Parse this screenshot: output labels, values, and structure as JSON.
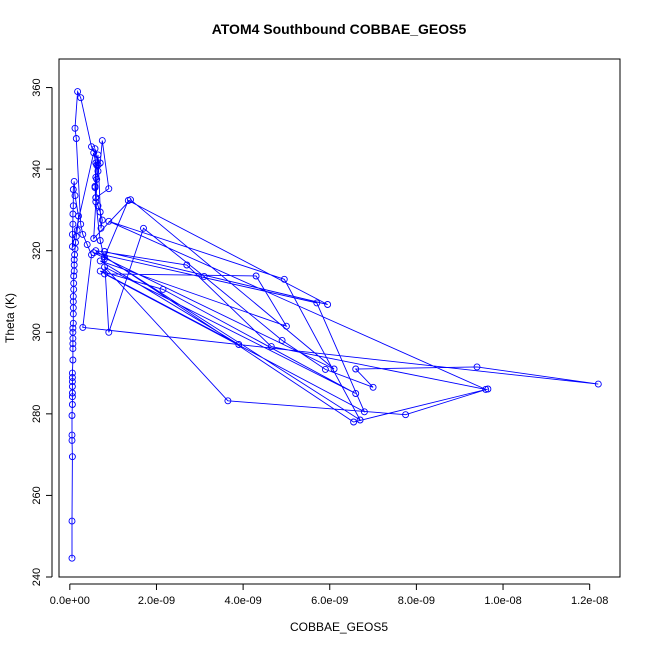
{
  "chart_data": {
    "type": "line",
    "title": "ATOM4 Southbound COBBAE_GEOS5",
    "xlabel": "COBBAE_GEOS5",
    "ylabel": "Theta (K)",
    "xlim": [
      -2.5e-10,
      1.27e-08
    ],
    "ylim": [
      240,
      367
    ],
    "xticks": [
      0,
      2e-09,
      4e-09,
      6e-09,
      8e-09,
      1e-08,
      1.2e-08
    ],
    "xtick_labels": [
      "0.0e+00",
      "2.0e-09",
      "4.0e-09",
      "6.0e-09",
      "8.0e-09",
      "1.0e-08",
      "1.2e-08"
    ],
    "yticks": [
      240,
      260,
      280,
      300,
      320,
      340,
      360
    ],
    "ytick_labels": [
      "240",
      "260",
      "280",
      "300",
      "320",
      "340",
      "360"
    ],
    "grid": false,
    "line_color": "#0000ff",
    "marker": "open-circle",
    "series": [
      {
        "x": [
          5e-11,
          5e-11,
          6e-11,
          5e-11,
          5e-11,
          5e-11,
          6e-11,
          6e-11,
          6e-11,
          6e-11,
          6e-11,
          6e-11,
          6e-11,
          7e-11,
          7e-11,
          7e-11,
          7e-11,
          7e-11,
          7e-11,
          8e-11,
          8e-11,
          8e-11,
          8e-11,
          8e-11,
          9e-11,
          9e-11,
          9e-11,
          1e-10,
          1e-10,
          1e-10,
          1.1e-10,
          1.2e-10,
          1.3e-10,
          1.5e-10,
          1.7e-10,
          2e-10,
          1.2e-10,
          1e-10,
          8e-11,
          8e-11,
          7e-11,
          7e-11,
          6e-11,
          6e-11,
          5.5e-10,
          6e-10,
          6.5e-10,
          6.2e-10,
          5.8e-10,
          6e-10,
          6.5e-10,
          7e-10,
          7.5e-10,
          7.2e-10,
          6.5e-10,
          6.2e-10,
          6e-10,
          5.8e-10,
          6e-10,
          7e-10,
          8e-10,
          9e-10,
          1.7e-09,
          3.1e-09,
          4.9e-09,
          5.9e-09,
          7e-09,
          6.6e-09,
          9.4e-09,
          1.22e-08,
          3e-10,
          5e-10,
          4e-10,
          3e-10,
          2.5e-10,
          1.5e-10,
          1.2e-10,
          1.8e-10,
          2.5e-10,
          5e-10,
          7e-10,
          7.5e-10,
          9e-10,
          6e-10,
          5.8e-10,
          6.5e-10,
          5.5e-10,
          1.4e-09,
          6.1e-09,
          5.5e-10,
          5.7e-09,
          6.8e-09,
          8e-10,
          4.3e-09,
          5e-09,
          7e-10,
          3.9e-09,
          7e-10,
          2.15e-09,
          6.6e-09,
          8e-10,
          3.65e-09,
          7.75e-09,
          9.65e-09,
          6.55e-09,
          6e-10,
          2.7e-09,
          4.65e-09,
          9.6e-09,
          9e-10,
          4.95e-09,
          6.7e-09,
          8e-10,
          1.35e-09,
          5.95e-09,
          8e-10
        ],
        "y": [
          244.6,
          253.7,
          269.5,
          273.5,
          274.8,
          279.6,
          282.3,
          284.2,
          285.1,
          286.7,
          287.9,
          288.9,
          290.0,
          293.2,
          296.0,
          297.2,
          298.5,
          300.0,
          301.0,
          302.2,
          304.5,
          306.0,
          307.5,
          308.8,
          310.5,
          312.0,
          313.8,
          315.0,
          316.5,
          317.8,
          319.0,
          320.5,
          322.0,
          323.5,
          325.0,
          328.5,
          333.5,
          337.0,
          335.0,
          331.0,
          329.0,
          326.5,
          324.0,
          321.0,
          344.0,
          341.5,
          339.5,
          337.5,
          335.5,
          333.0,
          331.0,
          329.5,
          327.5,
          325.5,
          343.5,
          341.0,
          338.0,
          335.8,
          332.0,
          322.5,
          318.0,
          300.0,
          325.5,
          313.7,
          298.0,
          290.9,
          286.5,
          291.0,
          291.5,
          287.3,
          301.2,
          319.0,
          321.5,
          324.0,
          326.5,
          347.5,
          350.0,
          359.0,
          357.5,
          345.5,
          341.5,
          347.0,
          335.2,
          333.0,
          345.0,
          341.0,
          323.0,
          332.5,
          291.0,
          319.5,
          307.2,
          280.5,
          314.3,
          313.8,
          301.5,
          317.5,
          297.0,
          315.0,
          310.5,
          285.0,
          316.0,
          283.2,
          279.8,
          286.1,
          278.0,
          320.0,
          316.5,
          296.5,
          286.0,
          327.2,
          313.0,
          278.5,
          318.5,
          332.3,
          306.8,
          319.8
        ]
      }
    ]
  }
}
